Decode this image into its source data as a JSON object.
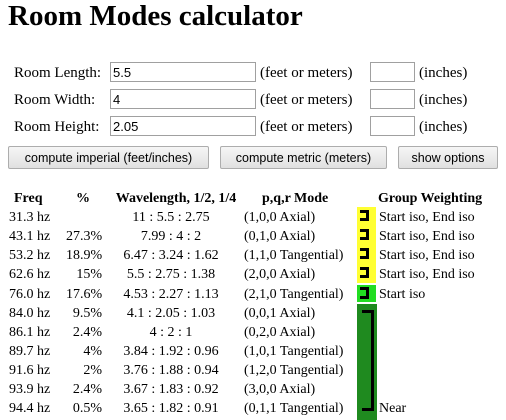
{
  "title": "Room Modes calculator",
  "form": {
    "length": {
      "label": "Room Length:",
      "value": "5.5",
      "unit": "(feet or meters)",
      "inches_value": "",
      "inches_unit": "(inches)"
    },
    "width": {
      "label": "Room Width:",
      "value": "4",
      "unit": "(feet or meters)",
      "inches_value": "",
      "inches_unit": "(inches)"
    },
    "height": {
      "label": "Room Height:",
      "value": "2.05",
      "unit": "(feet or meters)",
      "inches_value": "",
      "inches_unit": "(inches)"
    }
  },
  "buttons": {
    "imperial": "compute imperial (feet/inches)",
    "metric": "compute metric (meters)",
    "options": "show options"
  },
  "table": {
    "headers": {
      "freq": "Freq",
      "pct": "%",
      "wavelength": "Wavelength, 1/2, 1/4",
      "mode": "p,q,r Mode",
      "group": "Group Weighting"
    },
    "rows": [
      {
        "freq": "31.3 hz",
        "pct": "",
        "wavelength": "11 : 5.5 : 2.75",
        "mode": "(1,0,0 Axial)",
        "group": "Start iso, End iso"
      },
      {
        "freq": "43.1 hz",
        "pct": "27.3%",
        "wavelength": "7.99 : 4 : 2",
        "mode": "(0,1,0 Axial)",
        "group": "Start iso, End iso"
      },
      {
        "freq": "53.2 hz",
        "pct": "18.9%",
        "wavelength": "6.47 : 3.24 : 1.62",
        "mode": "(1,1,0 Tangential)",
        "group": "Start iso, End iso"
      },
      {
        "freq": "62.6 hz",
        "pct": "15%",
        "wavelength": "5.5 : 2.75 : 1.38",
        "mode": "(2,0,0 Axial)",
        "group": "Start iso, End iso"
      },
      {
        "freq": "76.0 hz",
        "pct": "17.6%",
        "wavelength": "4.53 : 2.27 : 1.13",
        "mode": "(2,1,0 Tangential)",
        "group": "Start iso"
      },
      {
        "freq": "84.0 hz",
        "pct": "9.5%",
        "wavelength": "4.1 : 2.05 : 1.03",
        "mode": "(0,0,1 Axial)",
        "group": ""
      },
      {
        "freq": "86.1 hz",
        "pct": "2.4%",
        "wavelength": "4 : 2 : 1",
        "mode": "(0,2,0 Axial)",
        "group": ""
      },
      {
        "freq": "89.7 hz",
        "pct": "4%",
        "wavelength": "3.84 : 1.92 : 0.96",
        "mode": "(1,0,1 Tangential)",
        "group": ""
      },
      {
        "freq": "91.6 hz",
        "pct": "2%",
        "wavelength": "3.76 : 1.88 : 0.94",
        "mode": "(1,2,0 Tangential)",
        "group": ""
      },
      {
        "freq": "93.9 hz",
        "pct": "2.4%",
        "wavelength": "3.67 : 1.83 : 0.92",
        "mode": "(3,0,0 Axial)",
        "group": ""
      },
      {
        "freq": "94.4 hz",
        "pct": "0.5%",
        "wavelength": "3.65 : 1.82 : 0.91",
        "mode": "(0,1,1 Tangential)",
        "group": "Near"
      }
    ]
  },
  "colors": {
    "yellow": "#ffff33",
    "bright_green": "#22dd22",
    "dark_green": "#1f8a1f"
  }
}
